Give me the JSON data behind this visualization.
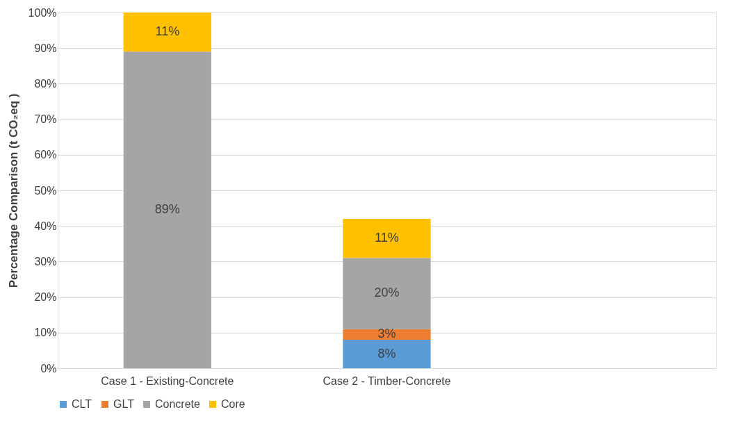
{
  "chart_data": {
    "type": "bar",
    "stacked": true,
    "ylabel": "Percentage Comparison (t CO₂eq )",
    "categories": [
      "Case 1 - Existing-Concrete",
      "Case 2 - Timber-Concrete",
      null
    ],
    "series": [
      {
        "name": "CLT",
        "color": "#5b9bd5",
        "values": [
          null,
          8,
          null
        ],
        "value_labels": [
          null,
          "8%",
          null
        ]
      },
      {
        "name": "GLT",
        "color": "#ed7d31",
        "values": [
          null,
          3,
          null
        ],
        "value_labels": [
          null,
          "3%",
          null
        ]
      },
      {
        "name": "Concrete",
        "color": "#a5a5a5",
        "values": [
          89,
          20,
          null
        ],
        "value_labels": [
          "89%",
          "20%",
          null
        ]
      },
      {
        "name": "Core",
        "color": "#ffc000",
        "values": [
          11,
          11,
          null
        ],
        "value_labels": [
          "11%",
          "11%",
          null
        ]
      }
    ],
    "ylim": [
      0,
      100
    ],
    "yticks": [
      {
        "value": 0,
        "label": "0%"
      },
      {
        "value": 10,
        "label": "10%"
      },
      {
        "value": 20,
        "label": "20%"
      },
      {
        "value": 30,
        "label": "30%"
      },
      {
        "value": 40,
        "label": "40%"
      },
      {
        "value": 50,
        "label": "50%"
      },
      {
        "value": 60,
        "label": "60%"
      },
      {
        "value": 70,
        "label": "70%"
      },
      {
        "value": 80,
        "label": "80%"
      },
      {
        "value": 90,
        "label": "90%"
      },
      {
        "value": 100,
        "label": "100%"
      }
    ],
    "grid": "y",
    "legend": "bottom"
  }
}
